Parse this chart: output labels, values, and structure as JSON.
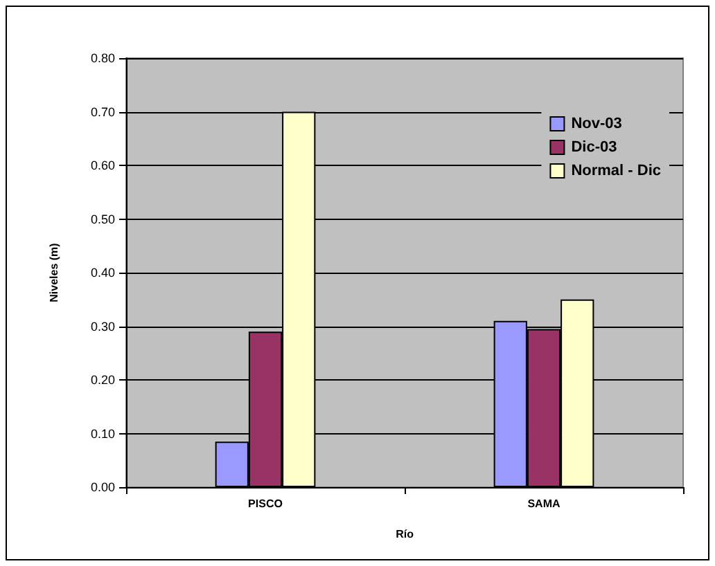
{
  "chart_data": {
    "type": "bar",
    "xlabel": "Río",
    "ylabel": "Niveles (m)",
    "categories": [
      "PISCO",
      "SAMA"
    ],
    "series": [
      {
        "name": "Nov-03",
        "color": "#9999ff",
        "values": [
          0.085,
          0.31
        ]
      },
      {
        "name": "Dic-03",
        "color": "#993366",
        "values": [
          0.29,
          0.295
        ]
      },
      {
        "name": "Normal - Dic",
        "color": "#ffffcc",
        "values": [
          0.7,
          0.35
        ]
      }
    ],
    "ylim": [
      0,
      0.8
    ],
    "yticks": [
      {
        "value": 0,
        "label": "0.00"
      },
      {
        "value": 0.1,
        "label": "0.10"
      },
      {
        "value": 0.2,
        "label": "0.20"
      },
      {
        "value": 0.3,
        "label": "0.30"
      },
      {
        "value": 0.4,
        "label": "0.40"
      },
      {
        "value": 0.5,
        "label": "0.50"
      },
      {
        "value": 0.6,
        "label": "0.60"
      },
      {
        "value": 0.7,
        "label": "0.70"
      },
      {
        "value": 0.8,
        "label": "0.80"
      }
    ],
    "grid": "y",
    "legend": "top right"
  }
}
